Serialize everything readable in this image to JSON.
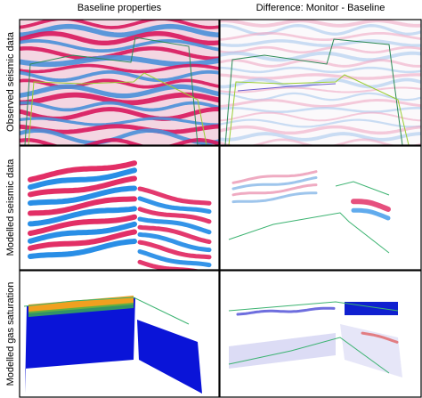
{
  "columns": [
    "Baseline properties",
    "Difference: Monitor - Baseline"
  ],
  "rows": [
    "Observed seismic data",
    "Modelled seismic data",
    "Modelled gas saturation"
  ]
}
